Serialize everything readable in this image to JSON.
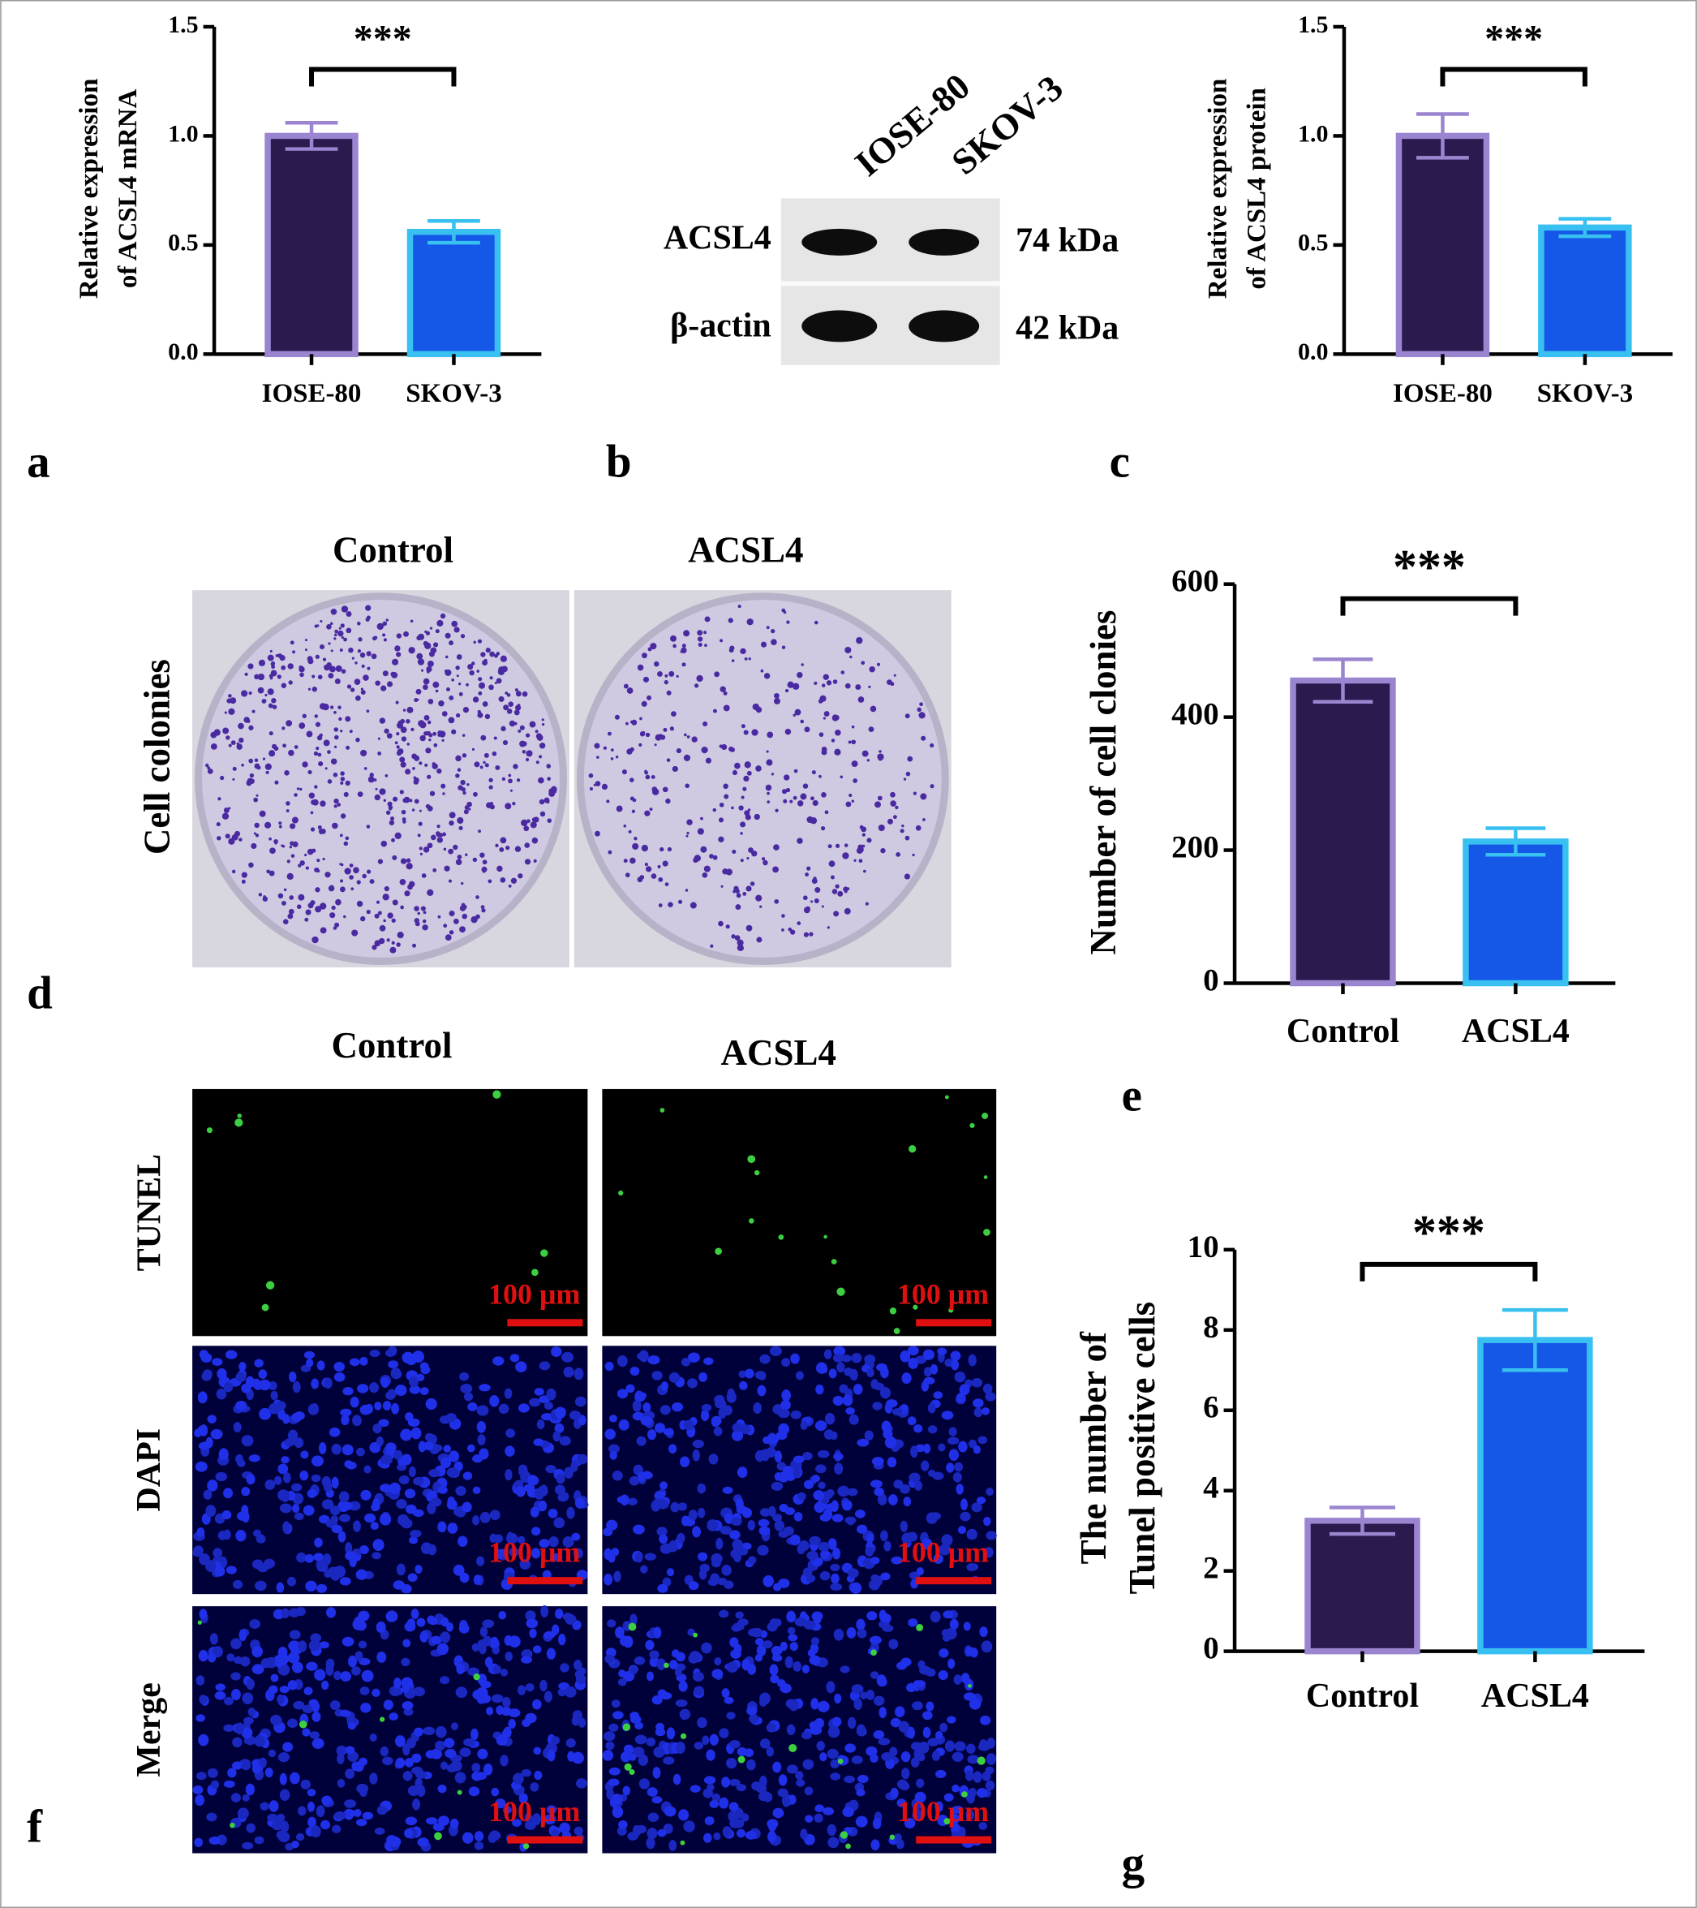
{
  "chart_data": [
    {
      "type": "bar",
      "ylabel": [
        "Relative expression",
        "of ACSL4 mRNA"
      ],
      "categories": [
        "IOSE-80",
        "SKOV-3"
      ],
      "values": [
        1.0,
        0.56
      ],
      "errors": [
        0.06,
        0.05
      ],
      "colors": [
        "#2a1a4e",
        "#1558e8"
      ],
      "edge_colors": [
        "#9b85d0",
        "#38c0f0"
      ],
      "ylim": [
        0,
        1.5
      ],
      "yticks": [
        {
          "value": 0,
          "label": "0.0"
        },
        {
          "value": 0.5,
          "label": "0.5"
        },
        {
          "value": 1,
          "label": "1.0"
        },
        {
          "value": 1.5,
          "label": "1.5"
        }
      ],
      "annotation": "***"
    },
    {
      "type": "bar",
      "ylabel": [
        "Relative expression",
        "of ACSL4 protein"
      ],
      "categories": [
        "IOSE-80",
        "SKOV-3"
      ],
      "values": [
        1.0,
        0.58
      ],
      "errors": [
        0.1,
        0.04
      ],
      "colors": [
        "#2a1a4e",
        "#1558e8"
      ],
      "edge_colors": [
        "#9b85d0",
        "#38c0f0"
      ],
      "ylim": [
        0,
        1.5
      ],
      "yticks": [
        {
          "value": 0,
          "label": "0.0"
        },
        {
          "value": 0.5,
          "label": "0.5"
        },
        {
          "value": 1,
          "label": "1.0"
        },
        {
          "value": 1.5,
          "label": "1.5"
        }
      ],
      "annotation": "***"
    },
    {
      "type": "bar",
      "ylabel": [
        "Number of cell clonies"
      ],
      "categories": [
        "Control",
        "ACSL4"
      ],
      "values": [
        455,
        213
      ],
      "errors": [
        32,
        20
      ],
      "colors": [
        "#2a1a4e",
        "#1558e8"
      ],
      "edge_colors": [
        "#9b85d0",
        "#38c0f0"
      ],
      "ylim": [
        0,
        600
      ],
      "yticks": [
        0,
        200,
        400,
        600
      ],
      "annotation": "***"
    },
    {
      "type": "bar",
      "ylabel": [
        "The number of",
        "Tunel positive cells"
      ],
      "categories": [
        "Control",
        "ACSL4"
      ],
      "values": [
        3.25,
        7.75
      ],
      "errors": [
        0.33,
        0.75
      ],
      "colors": [
        "#2a1a4e",
        "#1558e8"
      ],
      "edge_colors": [
        "#9b85d0",
        "#38c0f0"
      ],
      "ylim": [
        0,
        10
      ],
      "yticks": [
        0,
        2,
        4,
        6,
        8,
        10
      ],
      "annotation": "***"
    }
  ],
  "panel_labels": [
    "a",
    "b",
    "c",
    "d",
    "e",
    "f",
    "g"
  ],
  "blot": {
    "lanes": [
      "IOSE-80",
      "SKOV-3"
    ],
    "rows": [
      {
        "label": "ACSL4",
        "size": "74 kDa"
      },
      {
        "label": "β-actin",
        "size": "42 kDa"
      }
    ]
  },
  "colonies": {
    "columns": [
      "Control",
      "ACSL4"
    ],
    "row_label": "Cell colonies"
  },
  "fluorescence": {
    "columns": [
      "Control",
      "ACSL4"
    ],
    "rows": [
      "TUNEL",
      "DAPI",
      "Merge"
    ],
    "scale_bar": "100 μm"
  }
}
